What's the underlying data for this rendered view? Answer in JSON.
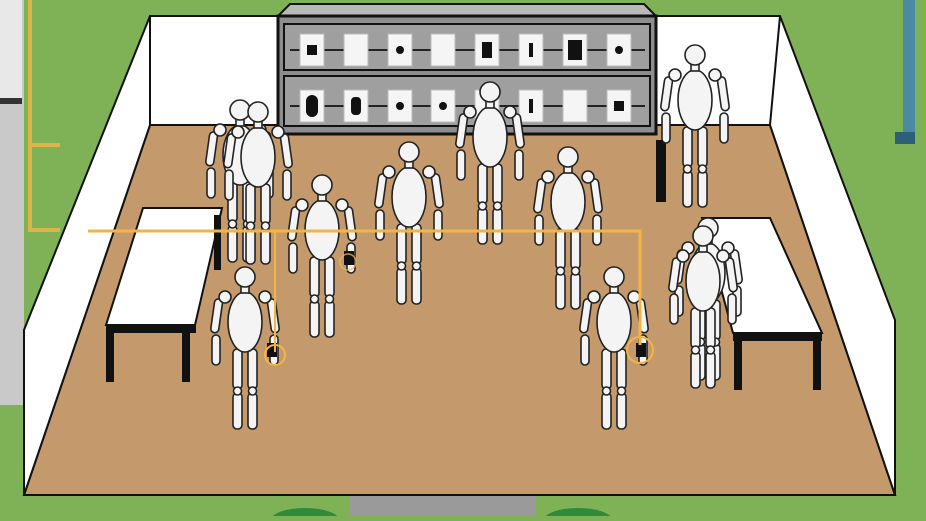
{
  "scene": {
    "type": "top-down illustrated room",
    "colors": {
      "grass": "#7fb257",
      "floor": "#c49a6c",
      "wall": "#ffffff",
      "shelf": "#8d8d8d",
      "highlight_line": "#f2b544",
      "figure_fill": "#f4f4f4",
      "figure_stroke": "#222222"
    },
    "shelf": {
      "levels": 2,
      "items_per_level": 8
    },
    "tables": [
      {
        "name": "left-table"
      },
      {
        "name": "right-table"
      }
    ],
    "figures": [
      {
        "name": "figure-back-left-1",
        "holding_item": false
      },
      {
        "name": "figure-back-left-2",
        "holding_item": false
      },
      {
        "name": "figure-back-center",
        "holding_item": false
      },
      {
        "name": "figure-back-right",
        "holding_item": false
      },
      {
        "name": "figure-mid-left",
        "holding_item": true
      },
      {
        "name": "figure-mid-center",
        "holding_item": false
      },
      {
        "name": "figure-mid-right",
        "holding_item": false
      },
      {
        "name": "figure-front-left",
        "holding_item": true
      },
      {
        "name": "figure-front-right",
        "holding_item": true
      },
      {
        "name": "figure-right-1",
        "holding_item": false
      },
      {
        "name": "figure-right-2",
        "holding_item": false
      }
    ]
  }
}
